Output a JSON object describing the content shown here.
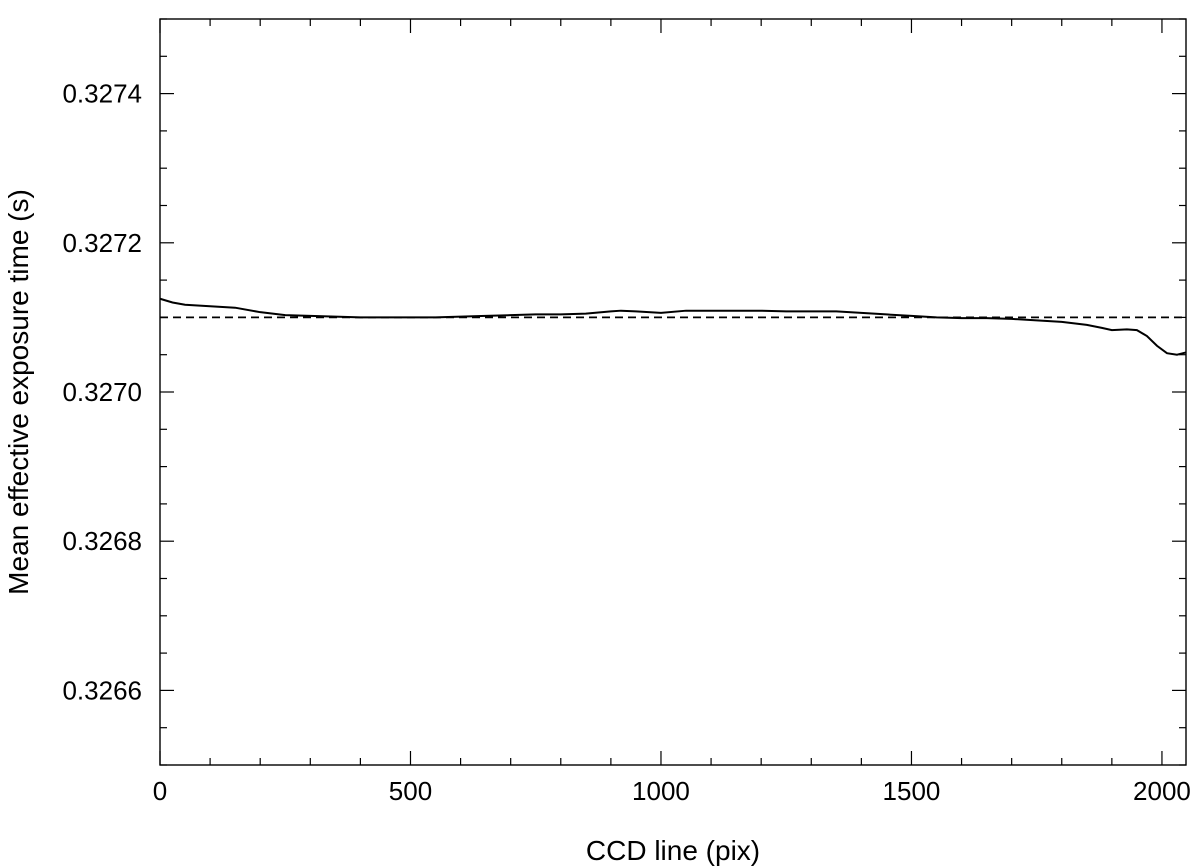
{
  "chart_data": {
    "type": "line",
    "title": "",
    "xlabel": "CCD line (pix)",
    "ylabel": "Mean effective exposure time (s)",
    "xlim": [
      0,
      2048
    ],
    "ylim": [
      0.3265,
      0.3275
    ],
    "x_ticks": [
      0,
      500,
      1000,
      1500,
      2000
    ],
    "x_tick_labels": [
      "0",
      "500",
      "1000",
      "1500",
      "2000"
    ],
    "x_minor_step": 100,
    "y_ticks": [
      0.3266,
      0.3268,
      0.327,
      0.3272,
      0.3274
    ],
    "y_tick_labels": [
      "0.3266",
      "0.3268",
      "0.3270",
      "0.3272",
      "0.3274"
    ],
    "y_minor_step": 5e-05,
    "grid": false,
    "legend": "none",
    "reference_line": {
      "y": 0.3271,
      "style": "dashed",
      "color": "#000000"
    },
    "series": [
      {
        "color": "#000000",
        "x": [
          0,
          25,
          50,
          100,
          150,
          200,
          250,
          300,
          350,
          400,
          450,
          500,
          550,
          600,
          650,
          700,
          750,
          800,
          850,
          900,
          920,
          950,
          1000,
          1050,
          1100,
          1150,
          1200,
          1250,
          1300,
          1350,
          1400,
          1450,
          1500,
          1550,
          1600,
          1650,
          1700,
          1750,
          1800,
          1850,
          1880,
          1900,
          1930,
          1950,
          1970,
          1990,
          2010,
          2030,
          2048
        ],
        "y": [
          0.327125,
          0.32712,
          0.327117,
          0.327115,
          0.327113,
          0.327107,
          0.327103,
          0.327102,
          0.327101,
          0.3271,
          0.3271,
          0.3271,
          0.3271,
          0.327101,
          0.327102,
          0.327103,
          0.327104,
          0.327104,
          0.327105,
          0.327108,
          0.327109,
          0.327108,
          0.327106,
          0.327109,
          0.327109,
          0.327109,
          0.327109,
          0.327108,
          0.327108,
          0.327108,
          0.327106,
          0.327104,
          0.327102,
          0.3271,
          0.327099,
          0.327099,
          0.327098,
          0.327096,
          0.327094,
          0.32709,
          0.327086,
          0.327083,
          0.327084,
          0.327083,
          0.327075,
          0.327062,
          0.327052,
          0.32705,
          0.327053
        ]
      }
    ]
  }
}
